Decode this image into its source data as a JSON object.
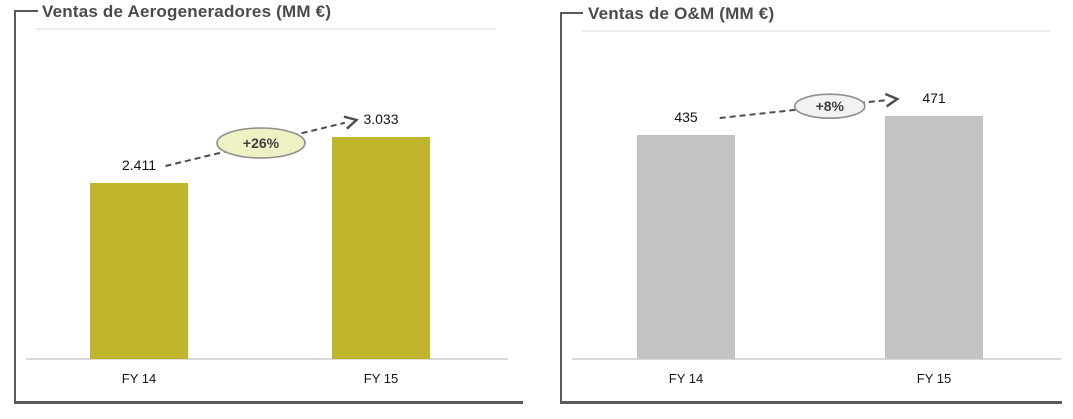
{
  "chart_data": [
    {
      "type": "bar",
      "title": "Ventas de Aerogeneradores (MM €)",
      "categories": [
        "FY 14",
        "FY 15"
      ],
      "values": [
        2411,
        3033
      ],
      "value_labels": [
        "2.411",
        "3.033"
      ],
      "growth_label": "+26%",
      "bar_color": "#c1b52e",
      "badge_fill": "#eef1c3",
      "xlabel": "",
      "ylabel": "",
      "ylim": [
        0,
        3350
      ],
      "grid": false,
      "legend": false
    },
    {
      "type": "bar",
      "title": "Ventas de O&M (MM €)",
      "categories": [
        "FY 14",
        "FY 15"
      ],
      "values": [
        435,
        471
      ],
      "value_labels": [
        "435",
        "471"
      ],
      "growth_label": "+8%",
      "bar_color": "#c3c3c3",
      "badge_fill": "#f2f2f2",
      "xlabel": "",
      "ylabel": "",
      "ylim": [
        0,
        475
      ],
      "grid": false,
      "legend": false
    }
  ],
  "colors": {
    "title_text": "#4a4b4e",
    "bracket": "#58595b",
    "axis_line": "#d9d9d9",
    "arrow": "#4d4d4d",
    "badge_stroke": "#8e8e8e",
    "label_text": "#141414"
  }
}
